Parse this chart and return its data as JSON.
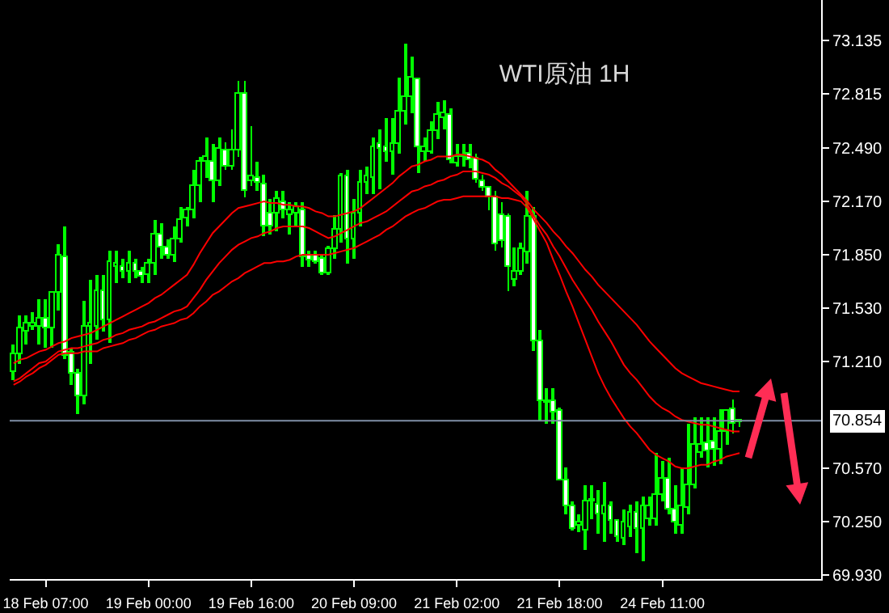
{
  "chart_data": {
    "type": "candlestick",
    "title": "WTI原油 1H",
    "categories": [
      null,
      null,
      null,
      null,
      null,
      "18 Feb 07:00",
      null,
      null,
      null,
      null,
      null,
      null,
      null,
      null,
      null,
      null,
      null,
      null,
      null,
      null,
      null,
      "19 Feb 00:00",
      null,
      null,
      null,
      null,
      null,
      null,
      null,
      null,
      null,
      null,
      null,
      null,
      null,
      null,
      null,
      "19 Feb 16:00",
      null,
      null,
      null,
      null,
      null,
      null,
      null,
      null,
      null,
      null,
      null,
      null,
      null,
      null,
      null,
      "20 Feb 09:00",
      null,
      null,
      null,
      null,
      null,
      null,
      null,
      null,
      null,
      null,
      null,
      null,
      null,
      null,
      null,
      "21 Feb 02:00",
      null,
      null,
      null,
      null,
      null,
      null,
      null,
      null,
      null,
      null,
      null,
      null,
      null,
      null,
      null,
      "21 Feb 18:00",
      null,
      null,
      null,
      null,
      null,
      null,
      null,
      null,
      null,
      null,
      null,
      null,
      null,
      null,
      null,
      "24 Feb 11:00",
      null,
      null,
      null,
      null,
      null,
      null,
      null,
      null,
      null,
      null,
      null,
      null
    ],
    "series": [
      {
        "color": "#00ff00",
        "ohlc": [
          [
            71.15,
            71.31,
            71.1,
            71.25
          ],
          [
            71.25,
            71.49,
            71.2,
            71.41
          ],
          [
            71.39,
            71.49,
            71.31,
            71.44
          ],
          [
            71.42,
            71.51,
            71.4,
            71.44
          ],
          [
            71.42,
            71.58,
            71.31,
            71.47
          ],
          [
            71.47,
            71.58,
            71.29,
            71.41
          ],
          [
            71.41,
            71.62,
            71.29,
            71.62
          ],
          [
            71.62,
            71.91,
            71.52,
            71.85
          ],
          [
            71.84,
            72.02,
            71.22,
            71.24
          ],
          [
            71.26,
            71.29,
            71.07,
            71.14
          ],
          [
            71.14,
            71.17,
            70.89,
            71.0
          ],
          [
            71.0,
            71.57,
            70.95,
            71.42
          ],
          [
            71.42,
            71.7,
            71.2,
            71.44
          ],
          [
            71.42,
            71.73,
            71.34,
            71.63
          ],
          [
            71.63,
            71.73,
            71.39,
            71.46
          ],
          [
            71.46,
            71.87,
            71.32,
            71.81
          ],
          [
            71.78,
            71.87,
            71.68,
            71.8
          ],
          [
            71.78,
            71.83,
            71.71,
            71.75
          ],
          [
            71.75,
            71.87,
            71.68,
            71.8
          ],
          [
            71.8,
            71.83,
            71.71,
            71.75
          ],
          [
            71.75,
            71.78,
            71.68,
            71.72
          ],
          [
            71.73,
            71.83,
            71.68,
            71.8
          ],
          [
            71.8,
            72.06,
            71.73,
            71.97
          ],
          [
            71.97,
            72.04,
            71.83,
            71.89
          ],
          [
            71.89,
            71.94,
            71.83,
            71.85
          ],
          [
            71.85,
            72.02,
            71.81,
            71.94
          ],
          [
            71.94,
            72.14,
            71.92,
            72.06
          ],
          [
            72.07,
            72.14,
            72.02,
            72.12
          ],
          [
            72.12,
            72.36,
            72.07,
            72.26
          ],
          [
            72.26,
            72.44,
            72.17,
            72.41
          ],
          [
            72.41,
            72.55,
            72.31,
            72.44
          ],
          [
            72.41,
            72.51,
            72.17,
            72.29
          ],
          [
            72.29,
            72.55,
            72.26,
            72.49
          ],
          [
            72.48,
            72.52,
            72.36,
            72.38
          ],
          [
            72.38,
            72.6,
            72.36,
            72.48
          ],
          [
            72.48,
            72.89,
            72.44,
            72.82
          ],
          [
            72.82,
            72.89,
            72.19,
            72.23
          ],
          [
            72.29,
            72.62,
            72.26,
            72.32
          ],
          [
            72.31,
            72.41,
            72.23,
            72.28
          ],
          [
            72.27,
            72.33,
            71.96,
            72.02
          ],
          [
            72.1,
            72.18,
            71.97,
            72.02
          ],
          [
            72.1,
            72.23,
            71.99,
            72.18
          ],
          [
            72.17,
            72.23,
            72.07,
            72.12
          ],
          [
            72.09,
            72.17,
            71.97,
            72.12
          ],
          [
            72.1,
            72.17,
            72.02,
            72.14
          ],
          [
            72.12,
            72.17,
            71.78,
            71.84
          ],
          [
            71.85,
            71.87,
            71.78,
            71.82
          ],
          [
            71.85,
            71.87,
            71.8,
            71.81
          ],
          [
            71.83,
            71.85,
            71.73,
            71.74
          ],
          [
            71.74,
            71.9,
            71.73,
            71.88
          ],
          [
            71.88,
            72.09,
            71.83,
            72.0
          ],
          [
            72.0,
            72.34,
            71.92,
            72.32
          ],
          [
            72.32,
            72.36,
            71.8,
            71.94
          ],
          [
            71.94,
            72.18,
            71.83,
            72.1
          ],
          [
            72.1,
            72.36,
            72.02,
            72.28
          ],
          [
            72.28,
            72.38,
            72.21,
            72.32
          ],
          [
            72.31,
            72.55,
            72.21,
            72.5
          ],
          [
            72.51,
            72.6,
            72.24,
            72.49
          ],
          [
            72.5,
            72.67,
            72.41,
            72.47
          ],
          [
            72.47,
            72.67,
            72.33,
            72.51
          ],
          [
            72.51,
            72.91,
            72.46,
            72.71
          ],
          [
            72.71,
            73.12,
            72.63,
            72.8
          ],
          [
            72.8,
            73.04,
            72.7,
            72.91
          ],
          [
            72.9,
            72.91,
            72.34,
            72.5
          ],
          [
            72.47,
            72.55,
            72.41,
            72.5
          ],
          [
            72.47,
            72.65,
            72.46,
            72.59
          ],
          [
            72.59,
            72.77,
            72.54,
            72.69
          ],
          [
            72.67,
            72.78,
            72.6,
            72.7
          ],
          [
            72.69,
            72.73,
            72.4,
            72.42
          ],
          [
            72.4,
            72.51,
            72.38,
            72.44
          ],
          [
            72.44,
            72.51,
            72.38,
            72.45
          ],
          [
            72.46,
            72.51,
            72.37,
            72.42
          ],
          [
            72.43,
            72.46,
            72.28,
            72.3
          ],
          [
            72.29,
            72.33,
            72.23,
            72.25
          ],
          [
            72.25,
            72.26,
            72.12,
            72.19
          ],
          [
            72.19,
            72.23,
            71.87,
            71.91
          ],
          [
            72.09,
            72.17,
            71.89,
            71.93
          ],
          [
            72.08,
            72.1,
            71.63,
            71.78
          ],
          [
            71.7,
            71.89,
            71.66,
            71.75
          ],
          [
            71.75,
            71.92,
            71.73,
            71.88
          ],
          [
            71.86,
            72.23,
            71.8,
            72.08
          ],
          [
            72.08,
            72.14,
            71.27,
            71.33
          ],
          [
            71.33,
            71.4,
            70.86,
            70.97
          ],
          [
            70.97,
            71.05,
            70.84,
            70.96
          ],
          [
            70.97,
            71.05,
            70.84,
            70.9
          ],
          [
            70.91,
            70.93,
            70.5,
            70.5
          ],
          [
            70.5,
            70.57,
            70.29,
            70.34
          ],
          [
            70.34,
            70.37,
            70.2,
            70.21
          ],
          [
            70.23,
            70.29,
            70.19,
            70.24
          ],
          [
            70.2,
            70.47,
            70.08,
            70.37
          ],
          [
            70.37,
            70.47,
            70.26,
            70.38
          ],
          [
            70.35,
            70.44,
            70.18,
            70.29
          ],
          [
            70.29,
            70.49,
            70.13,
            70.34
          ],
          [
            70.34,
            70.37,
            70.18,
            70.25
          ],
          [
            70.25,
            70.26,
            70.13,
            70.16
          ],
          [
            70.15,
            70.32,
            70.11,
            70.24
          ],
          [
            70.22,
            70.35,
            70.16,
            70.3
          ],
          [
            70.3,
            70.37,
            70.06,
            70.21
          ],
          [
            70.21,
            70.4,
            70.01,
            70.34
          ],
          [
            70.26,
            70.4,
            70.23,
            70.34
          ],
          [
            70.26,
            70.66,
            70.23,
            70.41
          ],
          [
            70.41,
            70.61,
            70.37,
            70.51
          ],
          [
            70.51,
            70.63,
            70.29,
            70.32
          ],
          [
            70.32,
            70.47,
            70.18,
            70.24
          ],
          [
            70.23,
            70.57,
            70.18,
            70.34
          ],
          [
            70.33,
            70.84,
            70.29,
            70.47
          ],
          [
            70.47,
            70.88,
            70.45,
            70.71
          ],
          [
            70.66,
            70.88,
            70.63,
            70.71
          ],
          [
            70.72,
            70.88,
            70.57,
            70.67
          ],
          [
            70.73,
            70.88,
            70.58,
            70.68
          ],
          [
            70.68,
            70.92,
            70.59,
            70.79
          ],
          [
            70.79,
            70.92,
            70.71,
            70.91
          ],
          [
            70.92,
            70.98,
            70.78,
            70.84
          ],
          [
            70.85,
            70.87,
            70.82,
            70.854
          ]
        ]
      },
      {
        "type": "line",
        "color": "#ff0000",
        "values": [
          71.2,
          71.22,
          71.23,
          71.25,
          71.27,
          71.28,
          71.3,
          71.32,
          71.33,
          71.35,
          71.36,
          71.37,
          71.38,
          71.4,
          71.42,
          71.44,
          71.46,
          71.48,
          71.5,
          71.52,
          71.54,
          71.56,
          71.59,
          71.61,
          71.64,
          71.67,
          71.7,
          71.73,
          71.79,
          71.86,
          71.92,
          71.98,
          72.02,
          72.06,
          72.1,
          72.13,
          72.14,
          72.15,
          72.16,
          72.17,
          72.16,
          72.16,
          72.15,
          72.15,
          72.14,
          72.14,
          72.13,
          72.11,
          72.1,
          72.08,
          72.08,
          72.09,
          72.1,
          72.11,
          72.13,
          72.16,
          72.19,
          72.22,
          72.25,
          72.28,
          72.32,
          72.35,
          72.38,
          72.39,
          72.41,
          72.42,
          72.44,
          72.44,
          72.44,
          72.45,
          72.45,
          72.44,
          72.43,
          72.42,
          72.4,
          72.36,
          72.33,
          72.29,
          72.25,
          72.21,
          72.17,
          72.12,
          72.08,
          72.04,
          71.99,
          71.95,
          71.9,
          71.86,
          71.81,
          71.76,
          71.72,
          71.67,
          71.63,
          71.59,
          71.55,
          71.51,
          71.47,
          71.43,
          71.38,
          71.33,
          71.29,
          71.25,
          71.21,
          71.17,
          71.14,
          71.12,
          71.1,
          71.08,
          71.07,
          71.06,
          71.05,
          71.04,
          71.03,
          71.03
        ]
      },
      {
        "type": "line",
        "color": "#ff0000",
        "values": [
          71.09,
          71.11,
          71.14,
          71.17,
          71.2,
          71.21,
          71.24,
          71.27,
          71.28,
          71.29,
          71.29,
          71.3,
          71.31,
          71.32,
          71.34,
          71.35,
          71.37,
          71.38,
          71.4,
          71.41,
          71.42,
          71.44,
          71.45,
          71.47,
          71.49,
          71.51,
          71.52,
          71.54,
          71.59,
          71.64,
          71.7,
          71.75,
          71.8,
          71.84,
          71.88,
          71.91,
          71.93,
          71.95,
          71.96,
          71.98,
          71.99,
          72.01,
          72.02,
          72.02,
          72.02,
          72.02,
          72.01,
          71.99,
          71.97,
          71.95,
          71.96,
          71.98,
          72.0,
          72.02,
          72.04,
          72.05,
          72.07,
          72.09,
          72.11,
          72.14,
          72.17,
          72.2,
          72.23,
          72.24,
          72.26,
          72.27,
          72.29,
          72.3,
          72.32,
          72.33,
          72.35,
          72.35,
          72.35,
          72.34,
          72.33,
          72.31,
          72.28,
          72.26,
          72.23,
          72.2,
          72.15,
          72.08,
          72.02,
          71.97,
          71.9,
          71.84,
          71.77,
          71.7,
          71.64,
          71.58,
          71.52,
          71.45,
          71.39,
          71.33,
          71.26,
          71.19,
          71.14,
          71.1,
          71.05,
          71.0,
          70.96,
          70.93,
          70.91,
          70.88,
          70.86,
          70.85,
          70.84,
          70.83,
          70.83,
          70.82,
          70.81,
          70.8,
          70.79,
          70.79
        ]
      },
      {
        "type": "line",
        "color": "#ff0000",
        "values": [
          71.07,
          71.09,
          71.12,
          71.14,
          71.17,
          71.19,
          71.22,
          71.25,
          71.26,
          71.26,
          71.26,
          71.27,
          71.27,
          71.27,
          71.29,
          71.3,
          71.31,
          71.32,
          71.34,
          71.35,
          71.37,
          71.39,
          71.4,
          71.42,
          71.43,
          71.44,
          71.46,
          71.47,
          71.5,
          71.54,
          71.57,
          71.61,
          71.63,
          71.66,
          71.69,
          71.71,
          71.74,
          71.76,
          71.78,
          71.8,
          71.8,
          71.81,
          71.81,
          71.82,
          71.84,
          71.85,
          71.85,
          71.85,
          71.85,
          71.85,
          71.86,
          71.87,
          71.88,
          71.89,
          71.91,
          71.93,
          71.95,
          71.97,
          72.0,
          72.02,
          72.05,
          72.08,
          72.1,
          72.12,
          72.13,
          72.15,
          72.17,
          72.18,
          72.18,
          72.19,
          72.2,
          72.2,
          72.2,
          72.2,
          72.2,
          72.2,
          72.19,
          72.19,
          72.18,
          72.17,
          72.13,
          72.06,
          71.99,
          71.92,
          71.82,
          71.73,
          71.63,
          71.54,
          71.44,
          71.34,
          71.24,
          71.14,
          71.06,
          70.99,
          70.93,
          70.87,
          70.82,
          70.78,
          70.73,
          70.68,
          70.65,
          70.63,
          70.61,
          70.58,
          70.57,
          70.57,
          70.58,
          70.59,
          70.59,
          70.61,
          70.62,
          70.64,
          70.65,
          70.66
        ]
      }
    ],
    "ylim": [
      69.905,
      73.378
    ],
    "yticks": [
      {
        "value": 73.135,
        "label": "73.135"
      },
      {
        "value": 72.815,
        "label": "72.815"
      },
      {
        "value": 72.49,
        "label": "72.490"
      },
      {
        "value": 72.17,
        "label": "72.170"
      },
      {
        "value": 71.85,
        "label": "71.850"
      },
      {
        "value": 71.53,
        "label": "71.530"
      },
      {
        "value": 71.21,
        "label": "71.210"
      },
      {
        "value": 70.57,
        "label": "70.570"
      },
      {
        "value": 70.25,
        "label": "70.250"
      },
      {
        "value": 69.93,
        "label": "69.930"
      }
    ],
    "ref_lines": [
      {
        "axis": "y",
        "value": 70.854,
        "label": "70.854",
        "color": "#7f8fa6"
      }
    ],
    "grid": false
  }
}
